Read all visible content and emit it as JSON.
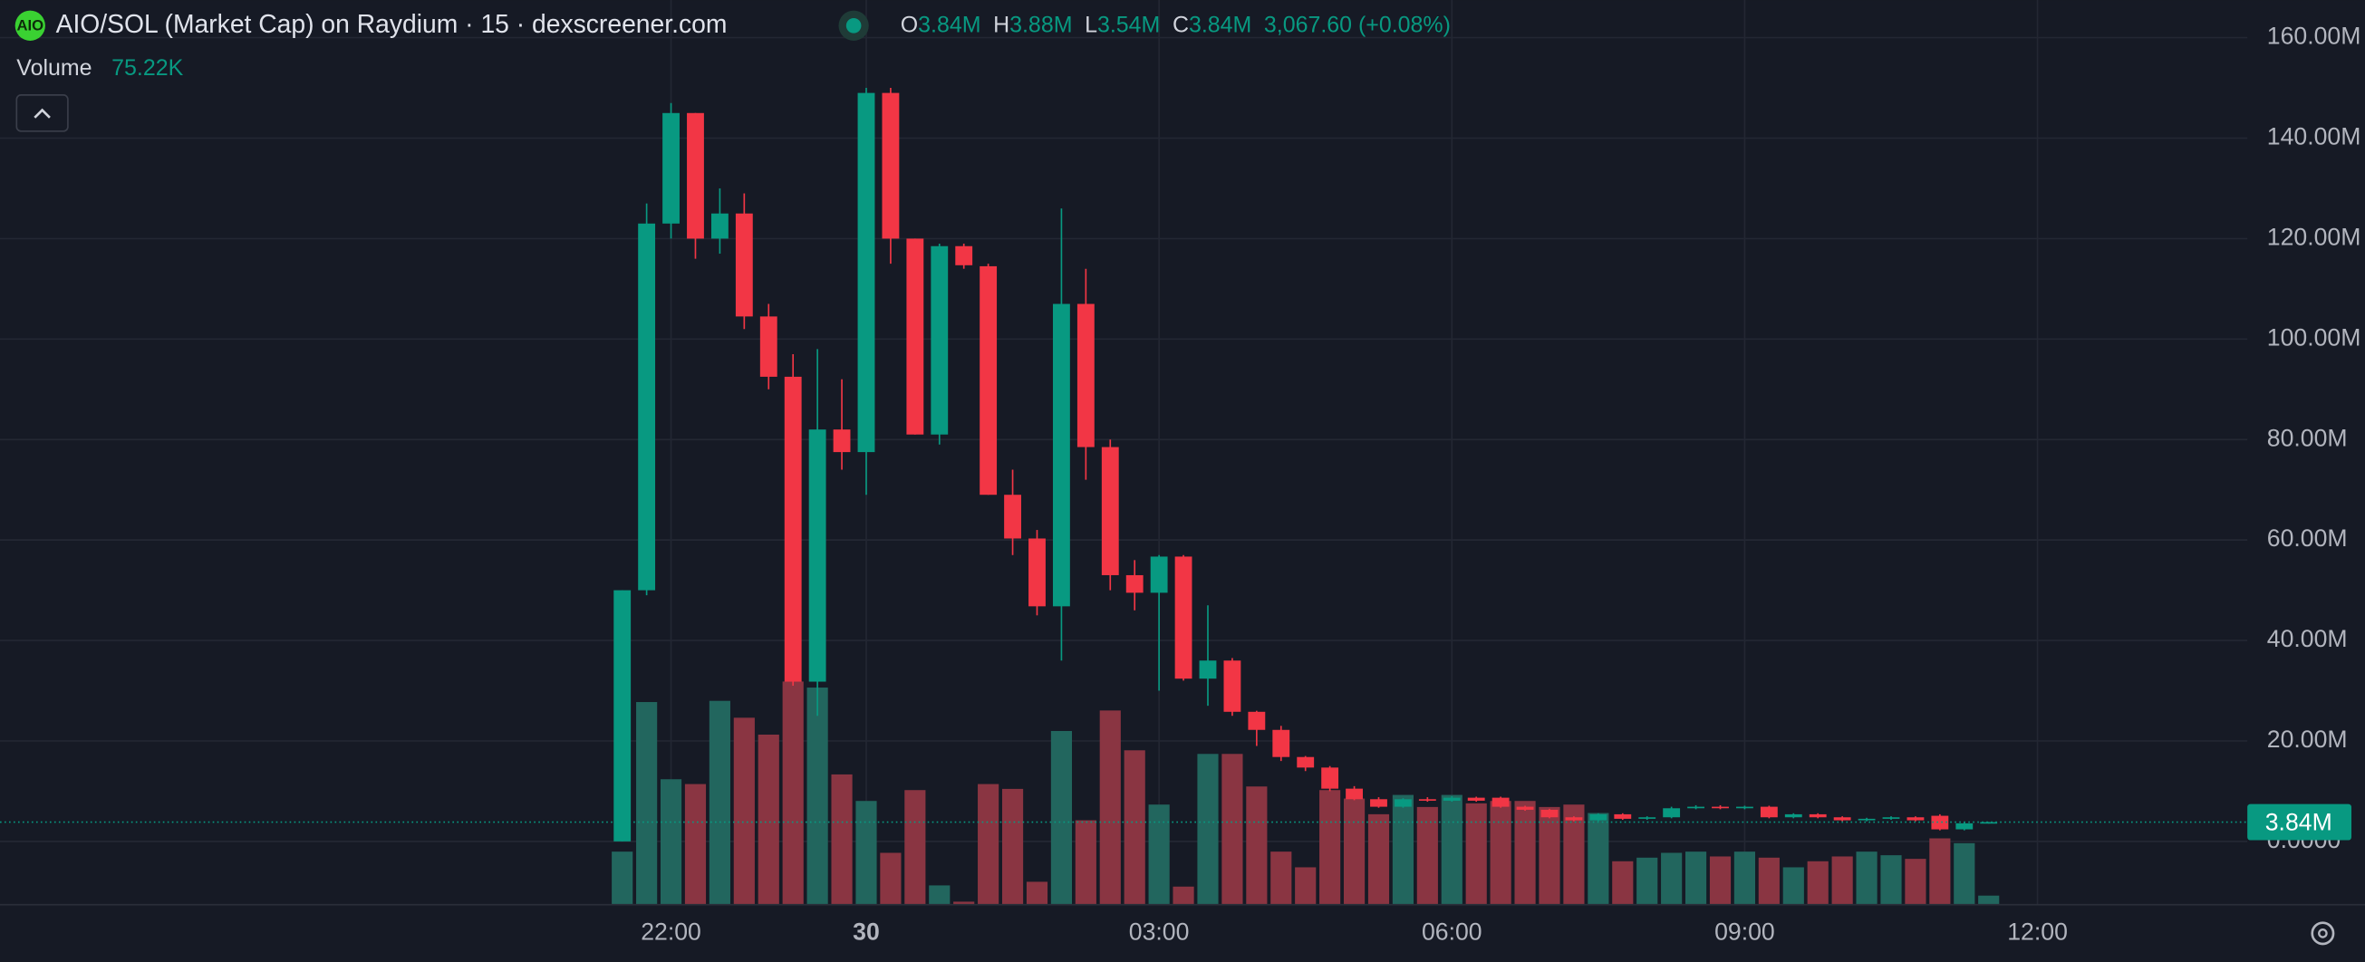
{
  "header": {
    "title": "AIO/SOL (Market Cap) on Raydium · 15 · dexscreener.com",
    "logo": "AIO",
    "open_label": "O",
    "open": "3.84M",
    "high_label": "H",
    "high": "3.88M",
    "low_label": "L",
    "low": "3.54M",
    "close_label": "C",
    "close": "3.84M",
    "change": "3,067.60 (+0.08%)",
    "volume_label": "Volume",
    "volume": "75.22K"
  },
  "chart_data": {
    "type": "candlestick",
    "ylim": [
      -12.6,
      167.5
    ],
    "yticks": [
      {
        "value": 160,
        "label": "160.00M"
      },
      {
        "value": 140,
        "label": "140.00M"
      },
      {
        "value": 120,
        "label": "120.00M"
      },
      {
        "value": 100,
        "label": "100.00M"
      },
      {
        "value": 80,
        "label": "80.00M"
      },
      {
        "value": 60,
        "label": "60.00M"
      },
      {
        "value": 40,
        "label": "40.00M"
      },
      {
        "value": 20,
        "label": "20.00M"
      },
      {
        "value": 0,
        "label": "0.0000"
      }
    ],
    "xlim": [
      -25.5,
      66.6
    ],
    "xticks": [
      {
        "value": 2,
        "label": "22:00"
      },
      {
        "value": 10,
        "label": "30"
      },
      {
        "value": 22,
        "label": "03:00"
      },
      {
        "value": 34,
        "label": "06:00"
      },
      {
        "value": 46,
        "label": "09:00"
      },
      {
        "value": 58,
        "label": "12:00"
      }
    ],
    "volume_lim": [
      0,
      7500
    ],
    "up_color": "#089981",
    "down_color": "#f23645",
    "up_volume_color": "#22665e",
    "down_volume_color": "#8a3542",
    "grid": true,
    "last_price": 3.84,
    "last_price_label": "3.84M",
    "open": [
      0,
      50,
      123,
      145,
      120,
      125,
      104.5,
      92.5,
      31.8,
      82,
      77.5,
      149,
      120,
      81,
      118.5,
      114.5,
      69,
      60.3,
      46.8,
      107,
      78.5,
      53,
      49.5,
      56.7,
      32.4,
      36,
      25.8,
      22.2,
      16.8,
      14.7,
      10.5,
      8.4,
      6.9,
      8.4,
      8.1,
      8.7,
      8.7,
      6.9,
      6.3,
      4.8,
      4.2,
      5.4,
      4.5,
      4.8,
      6.6,
      6.9,
      6.6,
      6.9,
      4.8,
      5.4,
      4.8,
      4.2,
      4.5,
      4.8,
      5.1,
      2.4,
      3.84
    ],
    "high": [
      50,
      127,
      147,
      145,
      130,
      129,
      107,
      97,
      98,
      92,
      150,
      150,
      120,
      119,
      119,
      115,
      74,
      62,
      126,
      114,
      80,
      56,
      57,
      57,
      47,
      36.5,
      26,
      23,
      17,
      15,
      11,
      8.8,
      8.6,
      8.8,
      9,
      8.9,
      8.9,
      7.1,
      6.5,
      5,
      5.6,
      5.6,
      5,
      6.9,
      7.2,
      7.2,
      7.1,
      7.1,
      5.6,
      5.6,
      5,
      4.7,
      5,
      5,
      5.4,
      3.8,
      3.88
    ],
    "low": [
      0,
      49,
      120,
      116,
      117,
      102,
      90,
      31,
      25,
      74,
      69,
      115,
      81,
      79,
      114,
      69,
      57,
      45,
      36,
      72,
      50,
      46,
      30,
      32,
      27,
      25,
      19,
      16,
      14,
      10,
      8.2,
      6.7,
      6.7,
      7.9,
      7.9,
      7.9,
      6.7,
      6.1,
      4.6,
      4,
      4,
      4.3,
      4.3,
      4.6,
      6.4,
      6.4,
      6.4,
      4.6,
      4.6,
      4.6,
      4,
      4,
      4.3,
      4,
      2.2,
      2.2,
      3.54
    ],
    "close": [
      50,
      123,
      145,
      120,
      125,
      104.5,
      92.5,
      31.8,
      82,
      77.5,
      149,
      120,
      81,
      118.5,
      114.7,
      69,
      60.3,
      46.8,
      107,
      78.5,
      53,
      49.5,
      56.7,
      32.4,
      36,
      25.8,
      22.2,
      16.8,
      14.7,
      10.5,
      8.4,
      6.9,
      8.4,
      8.1,
      8.7,
      8.1,
      6.9,
      6.3,
      4.8,
      4.2,
      5.4,
      4.5,
      4.8,
      6.6,
      6.9,
      6.6,
      6.9,
      4.8,
      5.4,
      4.8,
      4.2,
      4.5,
      4.8,
      4.2,
      2.4,
      3.6,
      3.84
    ],
    "volume": [
      440,
      1680,
      1040,
      1000,
      1690,
      1550,
      1410,
      1850,
      1800,
      1080,
      860,
      430,
      950,
      160,
      25,
      1000,
      960,
      190,
      1440,
      700,
      1610,
      1280,
      830,
      150,
      1250,
      1250,
      980,
      440,
      310,
      950,
      880,
      750,
      910,
      810,
      910,
      840,
      860,
      860,
      810,
      830,
      760,
      360,
      390,
      430,
      440,
      400,
      440,
      390,
      310,
      360,
      400,
      440,
      410,
      380,
      550,
      510,
      75.22
    ]
  }
}
